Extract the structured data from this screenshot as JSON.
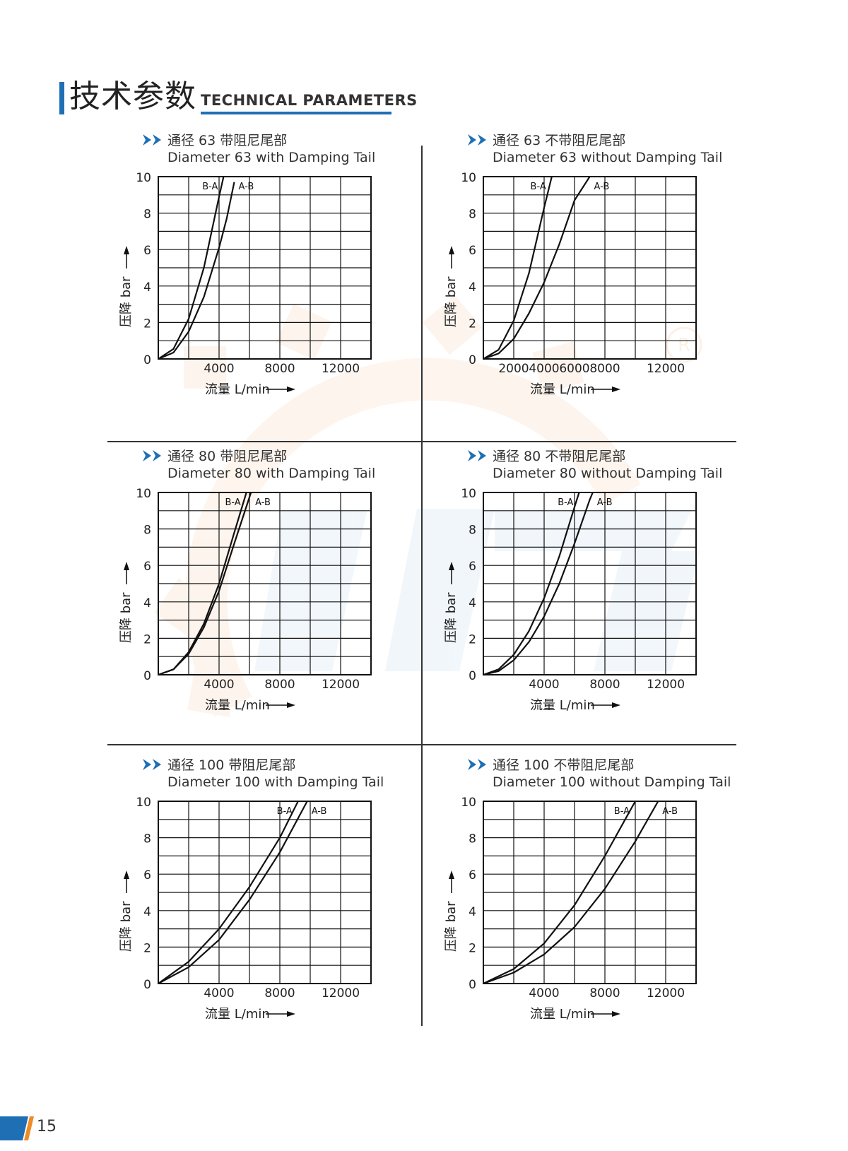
{
  "header": {
    "title_cn": "技术参数",
    "title_en": "TECHNICAL PARAMETERS",
    "accent_color": "#1f6fb5"
  },
  "watermark": {
    "color": "#f7b27a"
  },
  "footer": {
    "page_number": "15",
    "block_color_blue": "#1f6fb5",
    "block_color_orange": "#f08a24"
  },
  "chart_data": [
    {
      "type": "line",
      "title_cn": "通径 63 带阻尼尾部",
      "title_en": "Diameter 63 with Damping Tail",
      "xlabel": "流量 L/min",
      "ylabel": "压降 bar",
      "xlim": [
        0,
        14000
      ],
      "ylim": [
        0,
        10
      ],
      "xticks": [
        "4000",
        "8000",
        "12000"
      ],
      "xtick_values": [
        4000,
        8000,
        12000
      ],
      "yticks": [
        0,
        2,
        4,
        6,
        8,
        10
      ],
      "grid": true,
      "series": [
        {
          "name": "B-A",
          "x": [
            0,
            1000,
            2000,
            3000,
            4000,
            4300
          ],
          "y": [
            0,
            0.55,
            2.2,
            5.0,
            8.9,
            10
          ]
        },
        {
          "name": "A-B",
          "x": [
            0,
            1000,
            2000,
            3000,
            4000,
            4500,
            5000
          ],
          "y": [
            0,
            0.35,
            1.5,
            3.4,
            6.1,
            7.7,
            9.7
          ]
        }
      ]
    },
    {
      "type": "line",
      "title_cn": "通径 63 不带阻尼尾部",
      "title_en": "Diameter 63 without Damping Tail",
      "xlabel": "流量 L/min",
      "ylabel": "压降 bar",
      "xlim": [
        0,
        14000
      ],
      "ylim": [
        0,
        10
      ],
      "xticks": [
        "2000",
        "4000",
        "6000",
        "8000",
        "12000"
      ],
      "xtick_values": [
        2000,
        4000,
        6000,
        8000,
        12000
      ],
      "yticks": [
        0,
        2,
        4,
        6,
        8,
        10
      ],
      "grid": true,
      "series": [
        {
          "name": "B-A",
          "x": [
            0,
            1000,
            2000,
            3000,
            4000,
            4500
          ],
          "y": [
            0,
            0.5,
            2.1,
            4.7,
            8.3,
            10
          ]
        },
        {
          "name": "A-B",
          "x": [
            0,
            1000,
            2000,
            3000,
            4000,
            5000,
            6000,
            7000
          ],
          "y": [
            0,
            0.3,
            1.1,
            2.5,
            4.2,
            6.3,
            8.7,
            10
          ]
        }
      ]
    },
    {
      "type": "line",
      "title_cn": "通径 80 带阻尼尾部",
      "title_en": "Diameter 80 with Damping Tail",
      "xlabel": "流量 L/min",
      "ylabel": "压降 bar",
      "xlim": [
        0,
        14000
      ],
      "ylim": [
        0,
        10
      ],
      "xticks": [
        "4000",
        "8000",
        "12000"
      ],
      "xtick_values": [
        4000,
        8000,
        12000
      ],
      "yticks": [
        0,
        2,
        4,
        6,
        8,
        10
      ],
      "grid": true,
      "series": [
        {
          "name": "B-A",
          "x": [
            0,
            1000,
            2000,
            3000,
            4000,
            5000,
            5800
          ],
          "y": [
            0,
            0.3,
            1.25,
            2.8,
            5.0,
            7.8,
            10
          ]
        },
        {
          "name": "A-B",
          "x": [
            0,
            1000,
            2000,
            3000,
            4000,
            5000,
            6100
          ],
          "y": [
            0,
            0.3,
            1.15,
            2.6,
            4.6,
            7.2,
            10
          ]
        }
      ]
    },
    {
      "type": "line",
      "title_cn": "通径 80 不带阻尼尾部",
      "title_en": "Diameter 80 without Damping Tail",
      "xlabel": "流量 L/min",
      "ylabel": "压降 bar",
      "xlim": [
        0,
        14000
      ],
      "ylim": [
        0,
        10
      ],
      "xticks": [
        "4000",
        "8000",
        "12000"
      ],
      "xtick_values": [
        4000,
        8000,
        12000
      ],
      "yticks": [
        0,
        2,
        4,
        6,
        8,
        10
      ],
      "grid": true,
      "series": [
        {
          "name": "B-A",
          "x": [
            0,
            1000,
            2000,
            3000,
            4000,
            5000,
            6000,
            6300
          ],
          "y": [
            0,
            0.3,
            1.1,
            2.4,
            4.2,
            6.5,
            9.2,
            10
          ]
        },
        {
          "name": "A-B",
          "x": [
            0,
            1000,
            2000,
            3000,
            4000,
            5000,
            6000,
            7000,
            7200
          ],
          "y": [
            0,
            0.2,
            0.8,
            1.8,
            3.2,
            5.0,
            7.2,
            9.6,
            10
          ]
        }
      ]
    },
    {
      "type": "line",
      "title_cn": "通径 100 带阻尼尾部",
      "title_en": "Diameter 100 with Damping Tail",
      "xlabel": "流量 L/min",
      "ylabel": "压降 bar",
      "xlim": [
        0,
        14000
      ],
      "ylim": [
        0,
        10
      ],
      "xticks": [
        "4000",
        "8000",
        "12000"
      ],
      "xtick_values": [
        4000,
        8000,
        12000
      ],
      "yticks": [
        0,
        2,
        4,
        6,
        8,
        10
      ],
      "grid": true,
      "series": [
        {
          "name": "B-A",
          "x": [
            0,
            2000,
            4000,
            6000,
            8000,
            9200
          ],
          "y": [
            0,
            1.2,
            3.0,
            5.3,
            8.0,
            10
          ]
        },
        {
          "name": "A-B",
          "x": [
            0,
            2000,
            4000,
            6000,
            8000,
            9800
          ],
          "y": [
            0,
            0.9,
            2.4,
            4.6,
            7.2,
            10
          ]
        }
      ]
    },
    {
      "type": "line",
      "title_cn": "通径 100 不带阻尼尾部",
      "title_en": "Diameter 100 without Damping Tail",
      "xlabel": "流量 L/min",
      "ylabel": "压降 bar",
      "xlim": [
        0,
        14000
      ],
      "ylim": [
        0,
        10
      ],
      "xticks": [
        "4000",
        "8000",
        "12000"
      ],
      "xtick_values": [
        4000,
        8000,
        12000
      ],
      "yticks": [
        0,
        2,
        4,
        6,
        8,
        10
      ],
      "grid": true,
      "series": [
        {
          "name": "B-A",
          "x": [
            0,
            2000,
            4000,
            6000,
            8000,
            10000
          ],
          "y": [
            0,
            0.8,
            2.2,
            4.3,
            7.0,
            10
          ]
        },
        {
          "name": "A-B",
          "x": [
            0,
            2000,
            4000,
            6000,
            8000,
            10000,
            11500
          ],
          "y": [
            0,
            0.6,
            1.6,
            3.1,
            5.2,
            7.8,
            10
          ]
        }
      ]
    }
  ]
}
